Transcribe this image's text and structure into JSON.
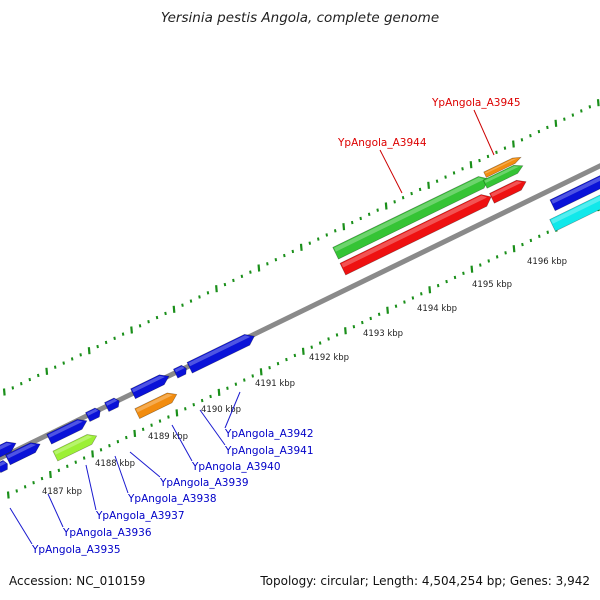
{
  "title": "Yersinia pestis Angola, complete genome",
  "footer": {
    "accession_label": "Accession: NC_010159",
    "topology_label": "Topology: circular; Length: 4,504,254 bp; Genes: 3,942"
  },
  "colors": {
    "blue_gene": "#0a12d8",
    "green_gene": "#35c435",
    "red_gene": "#ee1111",
    "orange_gene": "#f28c0f",
    "lime_gene": "#9cf035",
    "cyan_gene": "#11e8ea",
    "backbone": "#8a8a8a",
    "tick": "#1a8f1a",
    "label_blue": "#0000c8",
    "label_red": "#dd0000"
  },
  "scale_ticks": [
    "4187 kbp",
    "4188 kbp",
    "4189 kbp",
    "4190 kbp",
    "4191 kbp",
    "4192 kbp",
    "4193 kbp",
    "4194 kbp",
    "4195 kbp",
    "4196 kbp"
  ],
  "gene_labels_below": [
    "YpAngola_A3935",
    "YpAngola_A3936",
    "YpAngola_A3937",
    "YpAngola_A3938",
    "YpAngola_A3939",
    "YpAngola_A3940",
    "YpAngola_A3941",
    "YpAngola_A3942"
  ],
  "gene_labels_above": [
    "YpAngola_A3944",
    "YpAngola_A3945"
  ]
}
